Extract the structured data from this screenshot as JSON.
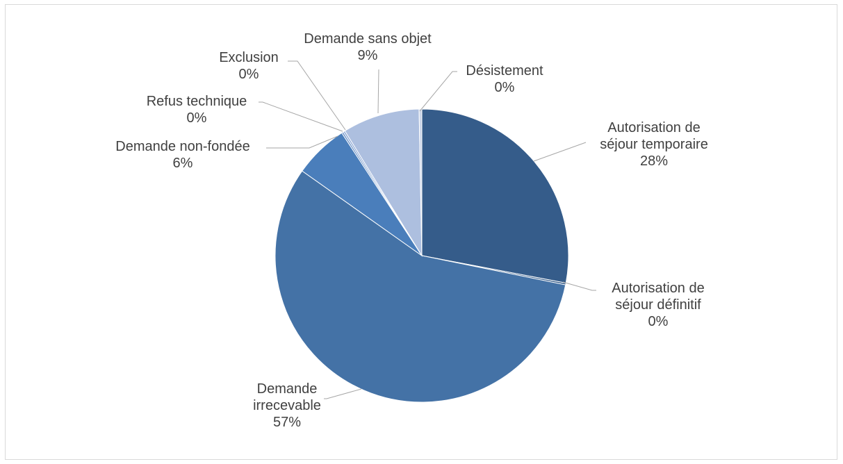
{
  "chart_data": {
    "type": "pie",
    "title": "",
    "slices": [
      {
        "name": "Autorisation de séjour temporaire",
        "label_lines": [
          "Autorisation de",
          "séjour temporaire"
        ],
        "percent_label": "28%",
        "value": 28.0,
        "color": "#355c8a"
      },
      {
        "name": "Autorisation de séjour définitif",
        "label_lines": [
          "Autorisation de",
          "séjour définitif"
        ],
        "percent_label": "0%",
        "value": 0.2,
        "color": "#355c8a"
      },
      {
        "name": "Demande irrecevable",
        "label_lines": [
          "Demande",
          "irrecevable"
        ],
        "percent_label": "57%",
        "value": 56.6,
        "color": "#4472a6"
      },
      {
        "name": "Demande non-fondée",
        "label_lines": [
          "Demande non-fondée"
        ],
        "percent_label": "6%",
        "value": 6.0,
        "color": "#4a7ebb"
      },
      {
        "name": "Refus technique",
        "label_lines": [
          "Refus technique"
        ],
        "percent_label": "0%",
        "value": 0.2,
        "color": "#6f95c9"
      },
      {
        "name": "Exclusion",
        "label_lines": [
          "Exclusion"
        ],
        "percent_label": "0%",
        "value": 0.2,
        "color": "#8faad6"
      },
      {
        "name": "Demande sans objet",
        "label_lines": [
          "Demande sans objet"
        ],
        "percent_label": "9%",
        "value": 8.5,
        "color": "#adbfdf"
      },
      {
        "name": "Désistement",
        "label_lines": [
          "Désistement"
        ],
        "percent_label": "0%",
        "value": 0.3,
        "color": "#c9d4e8"
      }
    ],
    "legend": "none",
    "data_labels": "outside with leader lines (category name and percentage)"
  }
}
